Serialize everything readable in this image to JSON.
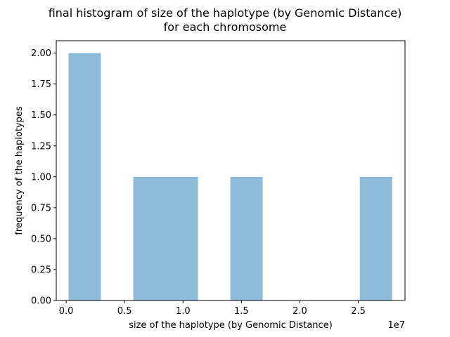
{
  "chart_data": {
    "type": "bar",
    "title_lines": [
      "final histogram of size of the haplotype (by Genomic Distance)",
      "for each chromosome"
    ],
    "xlabel": "size of the haplotype (by Genomic Distance)",
    "ylabel": "frequency of the haplotypes",
    "x_offset_label": "1e7",
    "x_scale": 10000000,
    "xlim": [
      -1.48,
      3.0
    ],
    "ylim": [
      0,
      2.1
    ],
    "x_ticks": [
      {
        "value": 0.0,
        "label": "0.0"
      },
      {
        "value": 0.5,
        "label": "0.5"
      },
      {
        "value": 1.0,
        "label": "1.0"
      },
      {
        "value": 1.5,
        "label": "1.5"
      },
      {
        "value": 2.0,
        "label": "2.0"
      },
      {
        "value": 2.5,
        "label": "2.5"
      }
    ],
    "y_ticks": [
      {
        "value": 0.0,
        "label": "0.00"
      },
      {
        "value": 0.25,
        "label": "0.25"
      },
      {
        "value": 0.5,
        "label": "0.50"
      },
      {
        "value": 0.75,
        "label": "0.75"
      },
      {
        "value": 1.0,
        "label": "1.00"
      },
      {
        "value": 1.25,
        "label": "1.25"
      },
      {
        "value": 1.5,
        "label": "1.50"
      },
      {
        "value": 1.75,
        "label": "1.75"
      },
      {
        "value": 2.0,
        "label": "2.00"
      }
    ],
    "bar_color": "#8fbbda",
    "bins": [
      {
        "x0": 0.02,
        "x1": 0.297,
        "count": 2
      },
      {
        "x0": 0.297,
        "x1": 0.574,
        "count": 0
      },
      {
        "x0": 0.574,
        "x1": 0.851,
        "count": 1
      },
      {
        "x0": 0.851,
        "x1": 1.128,
        "count": 1
      },
      {
        "x0": 1.128,
        "x1": 1.405,
        "count": 0
      },
      {
        "x0": 1.405,
        "x1": 1.682,
        "count": 1
      },
      {
        "x0": 1.682,
        "x1": 1.959,
        "count": 0
      },
      {
        "x0": 1.959,
        "x1": 2.236,
        "count": 0
      },
      {
        "x0": 2.236,
        "x1": 2.513,
        "count": 0
      },
      {
        "x0": 2.513,
        "x1": 2.79,
        "count": 1
      }
    ]
  }
}
